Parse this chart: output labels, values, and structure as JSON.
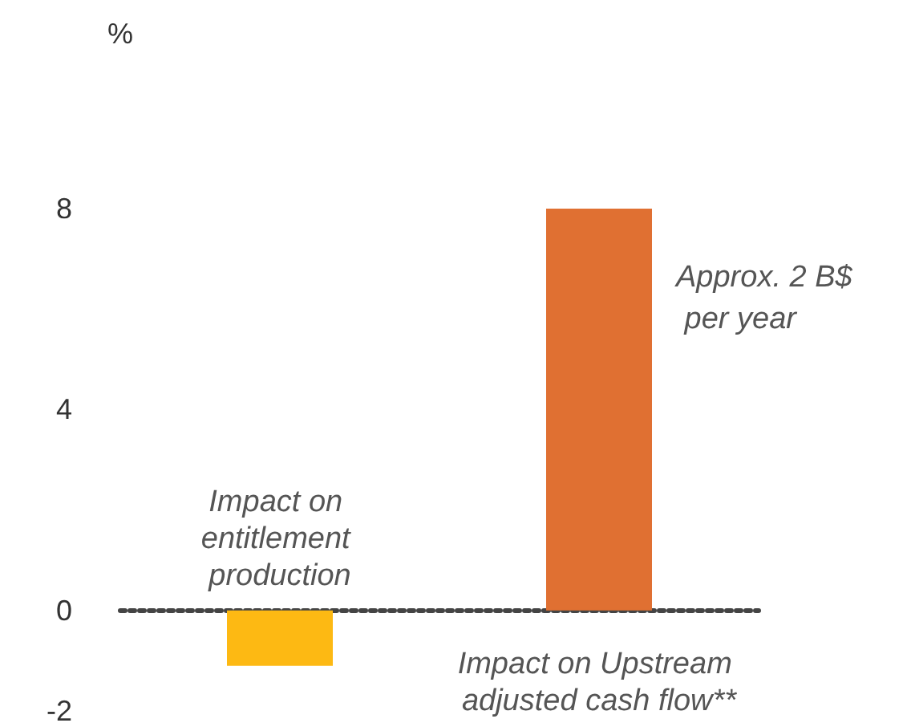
{
  "chart_data": {
    "type": "bar",
    "ylabel": "%",
    "categories": [
      "Impact on entitlement production",
      "Impact on Upstream adjusted cash flow**"
    ],
    "values": [
      -1.1,
      8
    ],
    "colors": [
      "#fdb913",
      "#e07032"
    ],
    "ylim": [
      -2,
      8
    ],
    "yticks": [
      -2,
      0,
      4,
      8
    ],
    "annotations": [
      "Approx. 2 B$ per year"
    ]
  }
}
